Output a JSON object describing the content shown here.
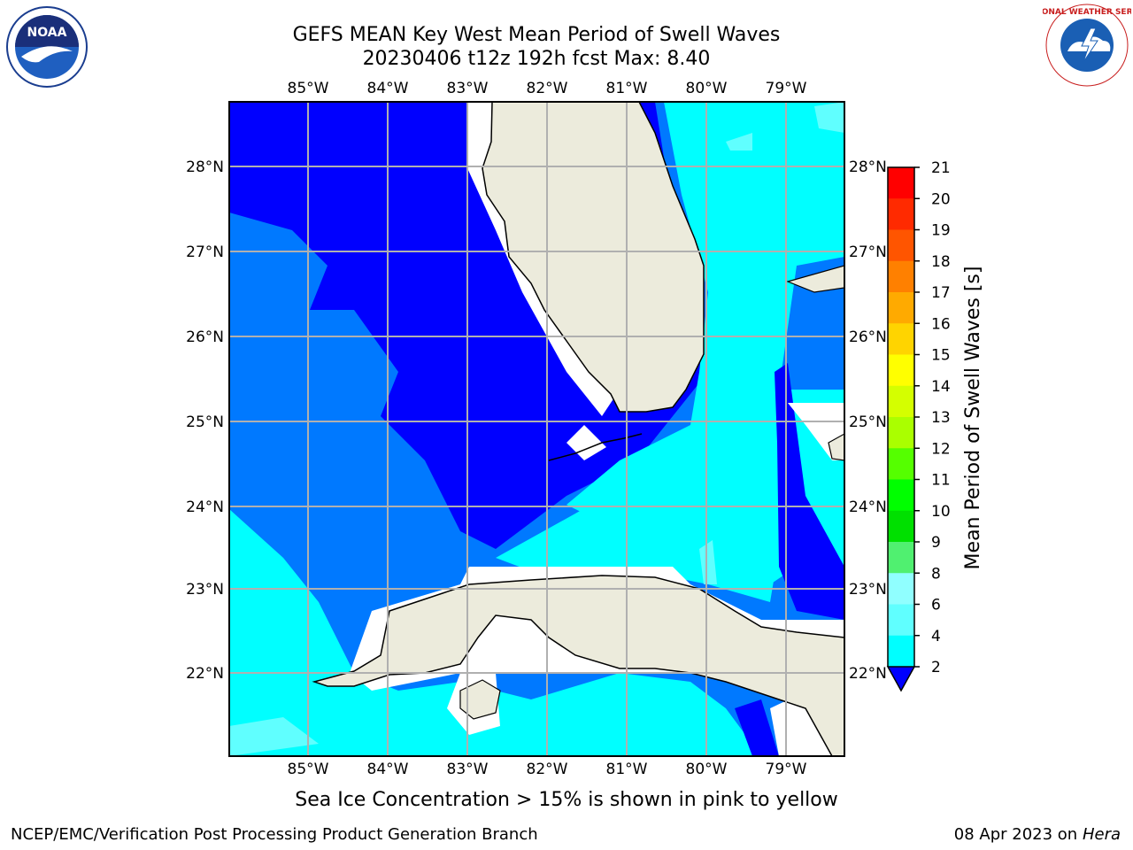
{
  "title": {
    "line1": "GEFS MEAN Key West Mean Period of Swell Waves",
    "line2": "20230406 t12z 192h fcst   Max: 8.40"
  },
  "logos": {
    "left": "noaa-logo",
    "right": "national-weather-service-logo",
    "left_text": "NOAA",
    "right_text": "NATIONAL WEATHER SERVICE"
  },
  "map": {
    "lon_labels": [
      "85°W",
      "84°W",
      "83°W",
      "82°W",
      "81°W",
      "80°W",
      "79°W"
    ],
    "lat_labels": [
      "28°N",
      "27°N",
      "26°N",
      "25°N",
      "24°N",
      "23°N",
      "22°N"
    ],
    "colors": {
      "land": "#ecebdc",
      "level_2_4": "#0079ff",
      "level_below_2": "#0000ff",
      "level_4_6": "#00ffff",
      "level_6_8": "#60ffff",
      "no_data": "#ffffff",
      "grid": "#b0b0b0"
    }
  },
  "colorbar": {
    "label": "Mean Period of Swell Waves [s]",
    "ticks": [
      "21",
      "20",
      "19",
      "18",
      "17",
      "16",
      "15",
      "14",
      "13",
      "12",
      "11",
      "10",
      "9",
      "8",
      "6",
      "4",
      "2"
    ],
    "colors": [
      "#ff0000",
      "#ff2a00",
      "#ff5500",
      "#ff8000",
      "#ffaa00",
      "#ffd400",
      "#ffff00",
      "#d4ff00",
      "#aaff00",
      "#55ff00",
      "#00ff00",
      "#00e000",
      "#50f070",
      "#90ffff",
      "#60ffff",
      "#00ffff",
      "#0079ff"
    ],
    "extend_color": "#0000ff"
  },
  "caption": "Sea Ice Concentration > 15% is shown in pink to yellow",
  "footer": {
    "credit": "NCEP/EMC/Verification Post Processing Product Generation Branch",
    "date": "08 Apr 2023 on ",
    "machine": "Hera"
  }
}
